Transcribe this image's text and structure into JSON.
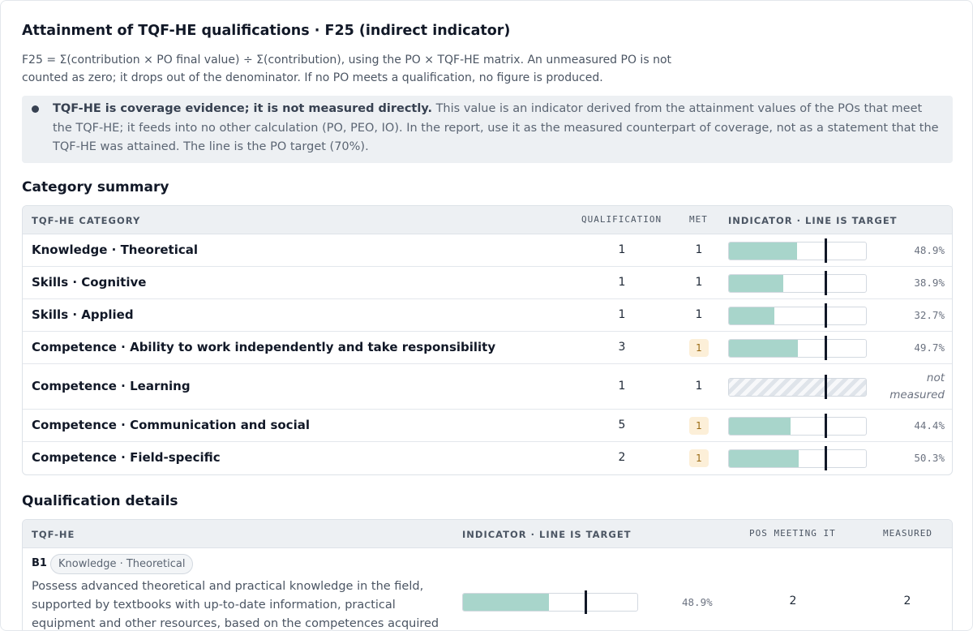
{
  "title": "Attainment of TQF-HE qualifications · F25 (indirect indicator)",
  "description": "F25 = Σ(contribution × PO final value) ÷ Σ(contribution), using the PO × TQF-HE matrix. An unmeasured PO is not counted as zero; it drops out of the denominator. If no PO meets a qualification, no figure is produced.",
  "note": {
    "bold": "TQF-HE is coverage evidence; it is not measured directly.",
    "text": " This value is an indicator derived from the attainment values of the POs that meet the TQF-HE; it feeds into no other calculation (PO, PEO, IO). In the report, use it as the measured counterpart of coverage, not as a statement that the TQF-HE was attained. The line is the PO target (70%)."
  },
  "summary": {
    "heading": "Category summary",
    "headers": {
      "category": "TQF-HE CATEGORY",
      "qualification": "QUALIFICATION",
      "met": "MET",
      "indicator": "INDICATOR · LINE IS TARGET"
    },
    "target": 0.7,
    "rows": [
      {
        "category": "Knowledge · Theoretical",
        "qualification": "1",
        "met": "1",
        "met_flag": false,
        "value": 0.489,
        "label": "48.9%"
      },
      {
        "category": "Skills · Cognitive",
        "qualification": "1",
        "met": "1",
        "met_flag": false,
        "value": 0.389,
        "label": "38.9%"
      },
      {
        "category": "Skills · Applied",
        "qualification": "1",
        "met": "1",
        "met_flag": false,
        "value": 0.327,
        "label": "32.7%"
      },
      {
        "category": "Competence · Ability to work independently and take responsibility",
        "qualification": "3",
        "met": "1",
        "met_flag": true,
        "value": 0.497,
        "label": "49.7%"
      },
      {
        "category": "Competence · Learning",
        "qualification": "1",
        "met": "1",
        "met_flag": false,
        "value": null,
        "label": "not measured"
      },
      {
        "category": "Competence · Communication and social",
        "qualification": "5",
        "met": "1",
        "met_flag": true,
        "value": 0.444,
        "label": "44.4%"
      },
      {
        "category": "Competence · Field-specific",
        "qualification": "2",
        "met": "1",
        "met_flag": true,
        "value": 0.503,
        "label": "50.3%"
      }
    ]
  },
  "details": {
    "heading": "Qualification details",
    "headers": {
      "tqf": "TQF-HE",
      "indicator": "INDICATOR · LINE IS TARGET",
      "pos": "POS MEETING IT",
      "measured": "MEASURED"
    },
    "rows": [
      {
        "code": "B1",
        "category": "Knowledge · Theoretical",
        "text": "Possess advanced theoretical and practical knowledge in the field, supported by textbooks with up-to-date information, practical equipment and other resources, based on the competences acquired in",
        "value": 0.489,
        "label": "48.9%",
        "pos": "2",
        "measured": "2"
      }
    ]
  }
}
